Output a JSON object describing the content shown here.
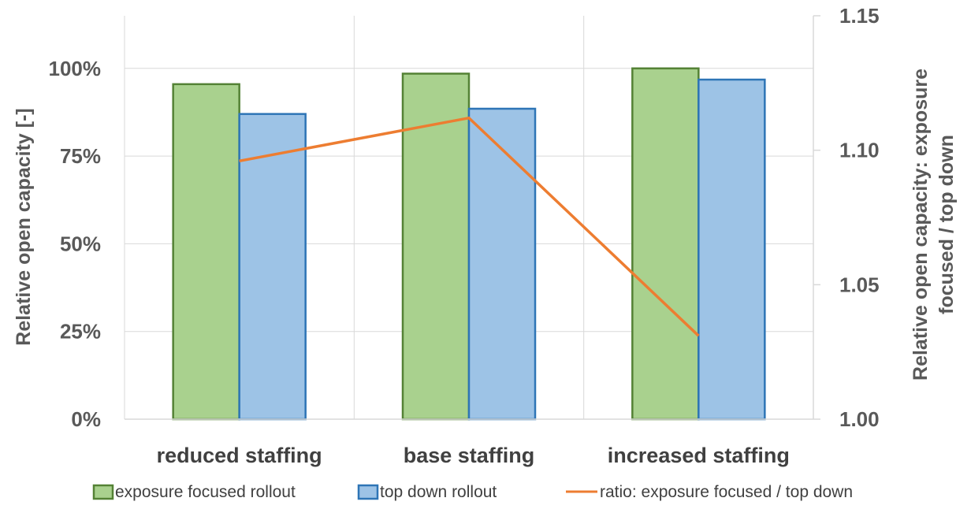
{
  "chart_data": {
    "type": "bar",
    "categories": [
      "reduced staffing",
      "base staffing",
      "increased staffing"
    ],
    "series": [
      {
        "name": "exposure focused rollout",
        "type": "bar",
        "axis": "left",
        "values": [
          0.955,
          0.985,
          1.0
        ],
        "fill": "#a9d18e",
        "stroke": "#548235"
      },
      {
        "name": "top down rollout",
        "type": "bar",
        "axis": "left",
        "values": [
          0.87,
          0.885,
          0.968
        ],
        "fill": "#9dc3e6",
        "stroke": "#2e75b6"
      },
      {
        "name": "ratio: exposure focused / top down",
        "type": "line",
        "axis": "right",
        "values": [
          1.096,
          1.112,
          1.031
        ],
        "stroke": "#ed7d31"
      }
    ],
    "xlabel": "",
    "ylabel": "Relative open capacity [-]",
    "y2label_lines": [
      "Relative open capacity: exposure",
      "focused / top down"
    ],
    "ylim": [
      0,
      1.15
    ],
    "yticks": [
      0,
      0.25,
      0.5,
      0.75,
      1.0
    ],
    "ytick_labels": [
      "0%",
      "25%",
      "50%",
      "75%",
      "100%"
    ],
    "y2lim": [
      1.0,
      1.15
    ],
    "y2ticks": [
      1.0,
      1.05,
      1.1,
      1.15
    ],
    "y2tick_labels": [
      "1.00",
      "1.05",
      "1.10",
      "1.15"
    ],
    "grid": true,
    "legend_position": "bottom"
  }
}
